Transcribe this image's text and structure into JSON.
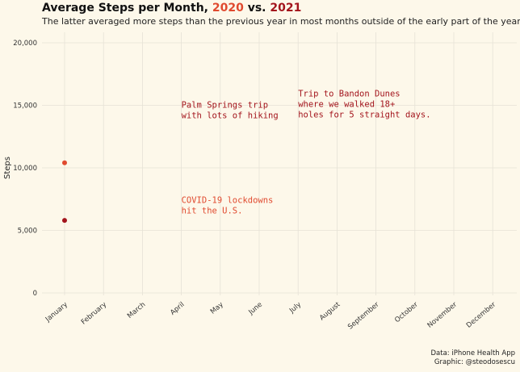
{
  "header": {
    "title_prefix": "Average Steps per Month, ",
    "title_year_a": "2020",
    "title_vs": " vs. ",
    "title_year_b": "2021",
    "subtitle": "The latter averaged more steps than the previous year in most months outside of the early part of the year."
  },
  "caption": {
    "line1": "Data: iPhone Health App",
    "line2": "Graphic: @steodosescu"
  },
  "colors": {
    "y2020": "#e04a2f",
    "y2021": "#a3141c",
    "grid": "#e6e2d6",
    "text": "#222222"
  },
  "chart_data": {
    "type": "scatter",
    "xlabel": "",
    "ylabel": "Steps",
    "categories": [
      "January",
      "February",
      "March",
      "April",
      "May",
      "June",
      "July",
      "August",
      "September",
      "October",
      "November",
      "December"
    ],
    "ylim": [
      0,
      20000
    ],
    "yticks": [
      0,
      5000,
      10000,
      15000,
      20000
    ],
    "ytick_labels": [
      "0",
      "5,000",
      "10,000",
      "15,000",
      "20,000"
    ],
    "grid": true,
    "series": [
      {
        "name": "2020",
        "color": "#e04a2f",
        "points": [
          {
            "x": "January",
            "y": 10400
          }
        ]
      },
      {
        "name": "2021",
        "color": "#a3141c",
        "points": [
          {
            "x": "January",
            "y": 5800
          }
        ]
      }
    ],
    "annotations": [
      {
        "lines": [
          "Palm Springs trip",
          "with lots of hiking"
        ],
        "x": "April",
        "y": 14800,
        "color": "#a3141c"
      },
      {
        "lines": [
          "Trip to Bandon Dunes",
          "where we walked 18+",
          "holes for 5 straight days."
        ],
        "x": "July",
        "y": 15700,
        "color": "#a3141c"
      },
      {
        "lines": [
          "COVID-19 lockdowns",
          "hit the U.S."
        ],
        "x": "April",
        "y": 7200,
        "color": "#e04a2f"
      }
    ]
  }
}
